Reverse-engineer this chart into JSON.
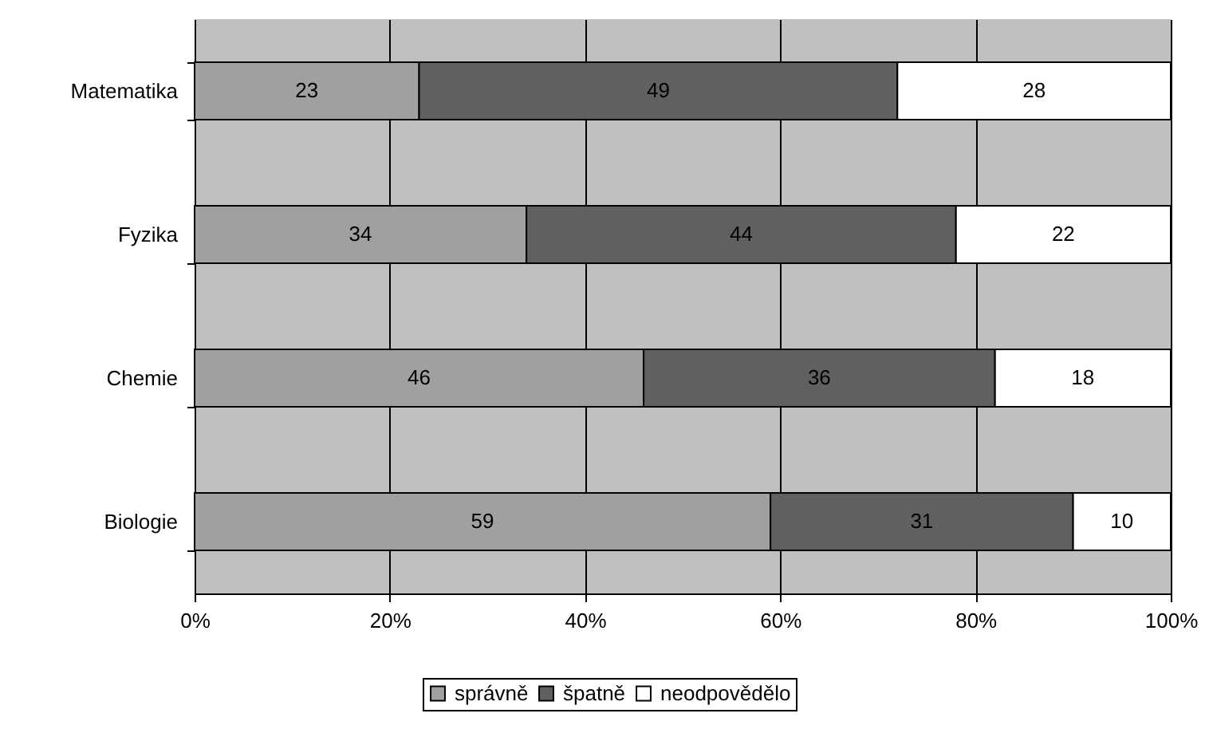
{
  "chart_data": {
    "type": "bar",
    "orientation": "horizontal",
    "stacked": true,
    "data_labels": true,
    "grid": "x",
    "legend": "bottom",
    "categories": [
      "Matematika",
      "Fyzika",
      "Chemie",
      "Biologie"
    ],
    "series": [
      {
        "name": "správně",
        "color": "#a0a0a0",
        "values": [
          23,
          34,
          46,
          59
        ]
      },
      {
        "name": "špatně",
        "color": "#606060",
        "values": [
          49,
          44,
          36,
          31
        ]
      },
      {
        "name": "neodpovědělo",
        "color": "#ffffff",
        "values": [
          28,
          22,
          18,
          10
        ]
      }
    ],
    "xlim": [
      0,
      100
    ],
    "xticks": [
      {
        "value": 0,
        "label": "0%"
      },
      {
        "value": 20,
        "label": "20%"
      },
      {
        "value": 40,
        "label": "40%"
      },
      {
        "value": 60,
        "label": "60%"
      },
      {
        "value": 80,
        "label": "80%"
      },
      {
        "value": 100,
        "label": "100%"
      }
    ]
  }
}
